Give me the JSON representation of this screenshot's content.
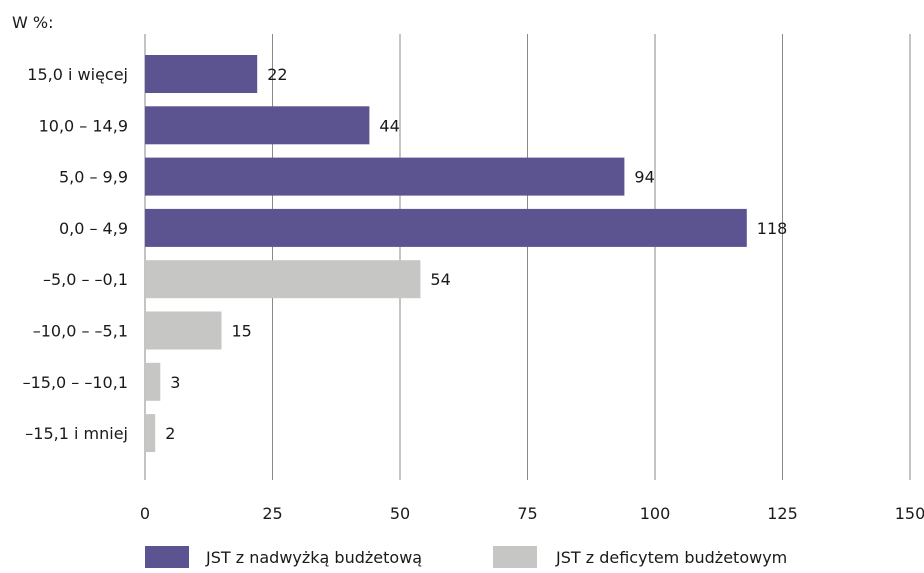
{
  "unit_label": "W %:",
  "colors": {
    "surplus": "#5b5491",
    "deficit": "#c6c6c4",
    "grid": "#8a8a8a",
    "text": "#1a1a1a"
  },
  "chart_data": {
    "type": "bar",
    "orientation": "horizontal",
    "categories": [
      "15,0 i więcej",
      "10,0 – 14,9",
      "5,0 – 9,9",
      "0,0 – 4,9",
      "–5,0 – –0,1",
      "–10,0 – –5,1",
      "–15,0 – –10,1",
      "–15,1 i mniej"
    ],
    "values": [
      22,
      44,
      94,
      118,
      54,
      15,
      3,
      2
    ],
    "value_labels": [
      "22",
      "44",
      "94",
      "118",
      "54",
      "15",
      "3",
      "2"
    ],
    "bar_series": [
      "surplus",
      "surplus",
      "surplus",
      "surplus",
      "deficit",
      "deficit",
      "deficit",
      "deficit"
    ],
    "series": [
      {
        "key": "surplus",
        "name": "JST z nadwyżką budżetową"
      },
      {
        "key": "deficit",
        "name": "JST z deficytem budżetowym"
      }
    ],
    "xlim": [
      0,
      150
    ],
    "xticks": [
      0,
      25,
      50,
      75,
      100,
      125,
      150
    ],
    "xtick_labels": [
      "0",
      "25",
      "50",
      "75",
      "100",
      "125",
      "150"
    ],
    "grid": true,
    "legend_position": "bottom"
  }
}
